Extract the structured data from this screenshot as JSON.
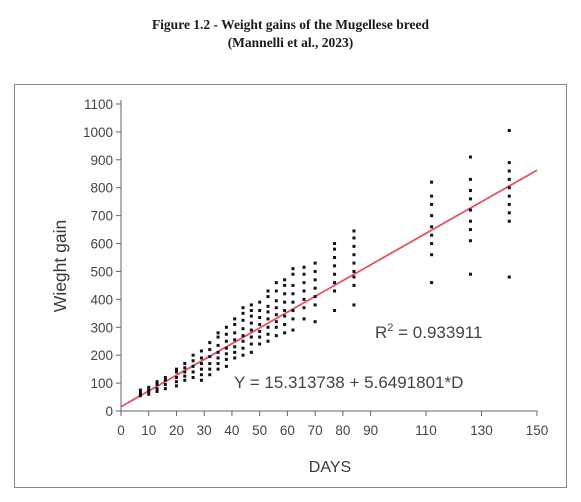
{
  "figure": {
    "caption_line1": "Figure 1.2 - Weight gains of the Mugellese breed",
    "caption_line2": "(Mannelli et al., 2023)"
  },
  "chart_data": {
    "type": "scatter",
    "xlabel": "DAYS",
    "ylabel": "Wieght gain",
    "xlim": [
      0,
      150
    ],
    "ylim": [
      0,
      1100
    ],
    "xticks": [
      0,
      10,
      20,
      30,
      40,
      50,
      60,
      70,
      80,
      90,
      110,
      130,
      150
    ],
    "yticks": [
      0,
      100,
      200,
      300,
      400,
      500,
      600,
      700,
      800,
      900,
      1000,
      1100
    ],
    "grid": false,
    "marker_color": "#111111",
    "line_color": "#e8505f",
    "annotations": {
      "r2_label": "R",
      "r2_sup": "2",
      "r2_value": " = 0.933911",
      "equation": "Y = 15.313738 + 5.6491801*D"
    },
    "trendline": {
      "intercept": 15.313738,
      "slope": 5.6491801
    },
    "points": [
      [
        7,
        55
      ],
      [
        7,
        65
      ],
      [
        7,
        75
      ],
      [
        7,
        60
      ],
      [
        10,
        60
      ],
      [
        10,
        75
      ],
      [
        10,
        85
      ],
      [
        10,
        70
      ],
      [
        13,
        70
      ],
      [
        13,
        80
      ],
      [
        13,
        95
      ],
      [
        13,
        105
      ],
      [
        16,
        80
      ],
      [
        16,
        95
      ],
      [
        16,
        110
      ],
      [
        16,
        120
      ],
      [
        20,
        90
      ],
      [
        20,
        105
      ],
      [
        20,
        120
      ],
      [
        20,
        140
      ],
      [
        20,
        150
      ],
      [
        23,
        110
      ],
      [
        23,
        125
      ],
      [
        23,
        140
      ],
      [
        23,
        155
      ],
      [
        23,
        170
      ],
      [
        26,
        120
      ],
      [
        26,
        140
      ],
      [
        26,
        160
      ],
      [
        26,
        180
      ],
      [
        26,
        200
      ],
      [
        29,
        110
      ],
      [
        29,
        130
      ],
      [
        29,
        150
      ],
      [
        29,
        170
      ],
      [
        29,
        190
      ],
      [
        29,
        215
      ],
      [
        32,
        130
      ],
      [
        32,
        150
      ],
      [
        32,
        170
      ],
      [
        32,
        195
      ],
      [
        32,
        220
      ],
      [
        32,
        245
      ],
      [
        35,
        150
      ],
      [
        35,
        170
      ],
      [
        35,
        190
      ],
      [
        35,
        210
      ],
      [
        35,
        235
      ],
      [
        35,
        265
      ],
      [
        35,
        280
      ],
      [
        38,
        160
      ],
      [
        38,
        185
      ],
      [
        38,
        205
      ],
      [
        38,
        225
      ],
      [
        38,
        250
      ],
      [
        38,
        275
      ],
      [
        38,
        300
      ],
      [
        41,
        190
      ],
      [
        41,
        210
      ],
      [
        41,
        230
      ],
      [
        41,
        255
      ],
      [
        41,
        280
      ],
      [
        41,
        310
      ],
      [
        41,
        330
      ],
      [
        44,
        200
      ],
      [
        44,
        225
      ],
      [
        44,
        250
      ],
      [
        44,
        270
      ],
      [
        44,
        295
      ],
      [
        44,
        325
      ],
      [
        44,
        350
      ],
      [
        44,
        370
      ],
      [
        47,
        210
      ],
      [
        47,
        240
      ],
      [
        47,
        265
      ],
      [
        47,
        290
      ],
      [
        47,
        315
      ],
      [
        47,
        340
      ],
      [
        47,
        360
      ],
      [
        47,
        380
      ],
      [
        50,
        240
      ],
      [
        50,
        265
      ],
      [
        50,
        285
      ],
      [
        50,
        310
      ],
      [
        50,
        335
      ],
      [
        50,
        360
      ],
      [
        50,
        390
      ],
      [
        53,
        250
      ],
      [
        53,
        275
      ],
      [
        53,
        300
      ],
      [
        53,
        330
      ],
      [
        53,
        355
      ],
      [
        53,
        375
      ],
      [
        53,
        410
      ],
      [
        53,
        430
      ],
      [
        56,
        270
      ],
      [
        56,
        300
      ],
      [
        56,
        320
      ],
      [
        56,
        345
      ],
      [
        56,
        370
      ],
      [
        56,
        395
      ],
      [
        56,
        430
      ],
      [
        56,
        460
      ],
      [
        59,
        280
      ],
      [
        59,
        310
      ],
      [
        59,
        340
      ],
      [
        59,
        360
      ],
      [
        59,
        390
      ],
      [
        59,
        420
      ],
      [
        59,
        450
      ],
      [
        59,
        470
      ],
      [
        62,
        290
      ],
      [
        62,
        330
      ],
      [
        62,
        360
      ],
      [
        62,
        390
      ],
      [
        62,
        420
      ],
      [
        62,
        450
      ],
      [
        62,
        490
      ],
      [
        62,
        510
      ],
      [
        66,
        330
      ],
      [
        66,
        370
      ],
      [
        66,
        400
      ],
      [
        66,
        430
      ],
      [
        66,
        460
      ],
      [
        66,
        490
      ],
      [
        66,
        515
      ],
      [
        70,
        320
      ],
      [
        70,
        380
      ],
      [
        70,
        410
      ],
      [
        70,
        440
      ],
      [
        70,
        470
      ],
      [
        70,
        500
      ],
      [
        70,
        530
      ],
      [
        77,
        360
      ],
      [
        77,
        430
      ],
      [
        77,
        460
      ],
      [
        77,
        490
      ],
      [
        77,
        520
      ],
      [
        77,
        550
      ],
      [
        77,
        580
      ],
      [
        77,
        600
      ],
      [
        84,
        380
      ],
      [
        84,
        450
      ],
      [
        84,
        480
      ],
      [
        84,
        500
      ],
      [
        84,
        530
      ],
      [
        84,
        560
      ],
      [
        84,
        590
      ],
      [
        84,
        620
      ],
      [
        84,
        645
      ],
      [
        112,
        460
      ],
      [
        112,
        560
      ],
      [
        112,
        600
      ],
      [
        112,
        630
      ],
      [
        112,
        660
      ],
      [
        112,
        700
      ],
      [
        112,
        740
      ],
      [
        112,
        770
      ],
      [
        112,
        820
      ],
      [
        126,
        490
      ],
      [
        126,
        610
      ],
      [
        126,
        650
      ],
      [
        126,
        680
      ],
      [
        126,
        720
      ],
      [
        126,
        760
      ],
      [
        126,
        790
      ],
      [
        126,
        830
      ],
      [
        126,
        910
      ],
      [
        140,
        480
      ],
      [
        140,
        680
      ],
      [
        140,
        710
      ],
      [
        140,
        740
      ],
      [
        140,
        770
      ],
      [
        140,
        800
      ],
      [
        140,
        830
      ],
      [
        140,
        860
      ],
      [
        140,
        890
      ],
      [
        140,
        1005
      ]
    ]
  }
}
